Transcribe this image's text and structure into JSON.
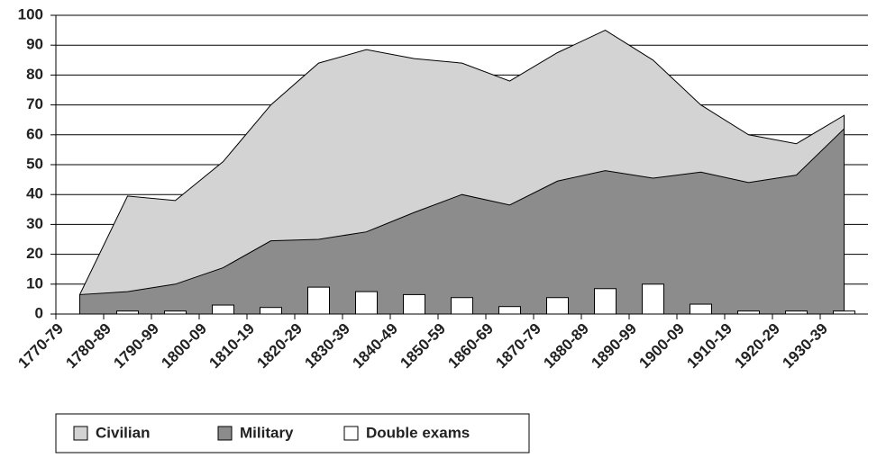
{
  "chart_data": {
    "type": "area",
    "categories": [
      "1770-79",
      "1780-89",
      "1790-99",
      "1800-09",
      "1810-19",
      "1820-29",
      "1830-39",
      "1840-49",
      "1850-59",
      "1860-69",
      "1870-79",
      "1880-89",
      "1890-99",
      "1900-09",
      "1910-19",
      "1920-29",
      "1930-39"
    ],
    "series": [
      {
        "name": "Civilian",
        "color": "#d3d3d3",
        "kind": "area",
        "values": [
          6.5,
          39.5,
          38,
          51,
          70,
          84,
          88.5,
          85.5,
          84,
          78,
          87.5,
          95,
          85,
          70,
          60,
          57,
          66.5
        ]
      },
      {
        "name": "Military",
        "color": "#8c8c8c",
        "kind": "area",
        "values": [
          6.5,
          7.5,
          10,
          15.5,
          24.5,
          25,
          27.5,
          34,
          40,
          36.5,
          44.5,
          48,
          45.5,
          47.5,
          44,
          46.5,
          62
        ]
      },
      {
        "name": "Double exams",
        "color": "#ffffff",
        "kind": "bar",
        "values": [
          0,
          1,
          1,
          3,
          2.2,
          9,
          7.5,
          6.5,
          5.5,
          2.5,
          5.5,
          8.5,
          10,
          3.3,
          1,
          1,
          1
        ]
      }
    ],
    "ylim": [
      0,
      100
    ],
    "yticks": [
      0,
      10,
      20,
      30,
      40,
      50,
      60,
      70,
      80,
      90,
      100
    ],
    "grid": true,
    "legend": "bottom"
  }
}
